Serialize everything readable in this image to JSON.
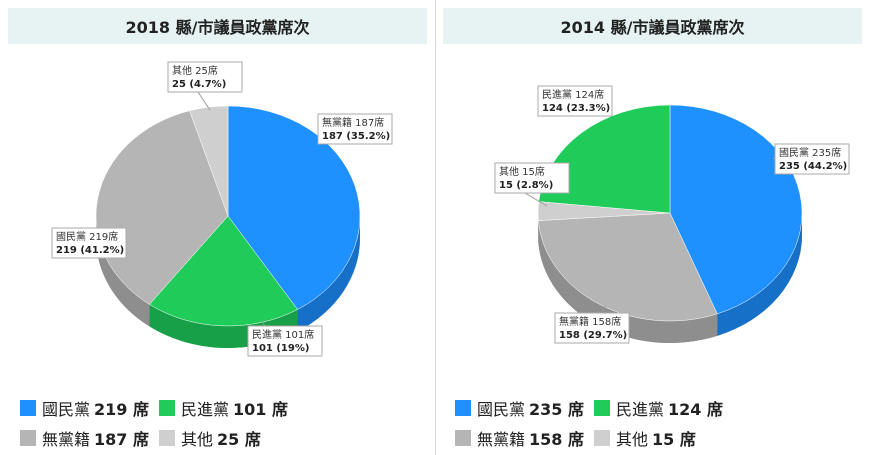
{
  "chart_data": [
    {
      "type": "pie",
      "title": "2018 縣/市議員政黨席次",
      "slices": [
        {
          "name": "國民黨",
          "value": 219,
          "percent": "41.2%",
          "color": "#1e90ff",
          "dark": "#1770c8",
          "label_line1": "國民黨 219席",
          "label_line2": "219 (41.2%)",
          "legend": "219 席"
        },
        {
          "name": "民進黨",
          "value": 101,
          "percent": "19%",
          "color": "#1fcc5a",
          "dark": "#18a048",
          "label_line1": "民進黨 101席",
          "label_line2": "101 (19%)",
          "legend": "101 席"
        },
        {
          "name": "無黨籍",
          "value": 187,
          "percent": "35.2%",
          "color": "#b5b5b5",
          "dark": "#8e8e8e",
          "label_line1": "無黨籍 187席",
          "label_line2": "187 (35.2%)",
          "legend": "187 席"
        },
        {
          "name": "其他",
          "value": 25,
          "percent": "4.7%",
          "color": "#cfcfcf",
          "dark": "#a5a5a5",
          "label_line1": "其他 25席",
          "label_line2": "25 (4.7%)",
          "legend": "25 席"
        }
      ]
    },
    {
      "type": "pie",
      "title": "2014 縣/市議員政黨席次",
      "slices": [
        {
          "name": "國民黨",
          "value": 235,
          "percent": "44.2%",
          "color": "#1e90ff",
          "dark": "#1770c8",
          "label_line1": "國民黨 235席",
          "label_line2": "235 (44.2%)",
          "legend": "235 席"
        },
        {
          "name": "無黨籍",
          "value": 158,
          "percent": "29.7%",
          "color": "#b5b5b5",
          "dark": "#8e8e8e",
          "label_line1": "無黨籍 158席",
          "label_line2": "158 (29.7%)",
          "legend": "158 席"
        },
        {
          "name": "其他",
          "value": 15,
          "percent": "2.8%",
          "color": "#cfcfcf",
          "dark": "#a5a5a5",
          "label_line1": "其他 15席",
          "label_line2": "15 (2.8%)",
          "legend": "15 席"
        },
        {
          "name": "民進黨",
          "value": 124,
          "percent": "23.3%",
          "color": "#1fcc5a",
          "dark": "#18a048",
          "label_line1": "民進黨 124席",
          "label_line2": "124 (23.3%)",
          "legend": "124 席"
        }
      ]
    }
  ],
  "legend_order": [
    [
      "國民黨",
      "民進黨",
      "無黨籍",
      "其他"
    ],
    [
      "國民黨",
      "民進黨",
      "無黨籍",
      "其他"
    ]
  ]
}
